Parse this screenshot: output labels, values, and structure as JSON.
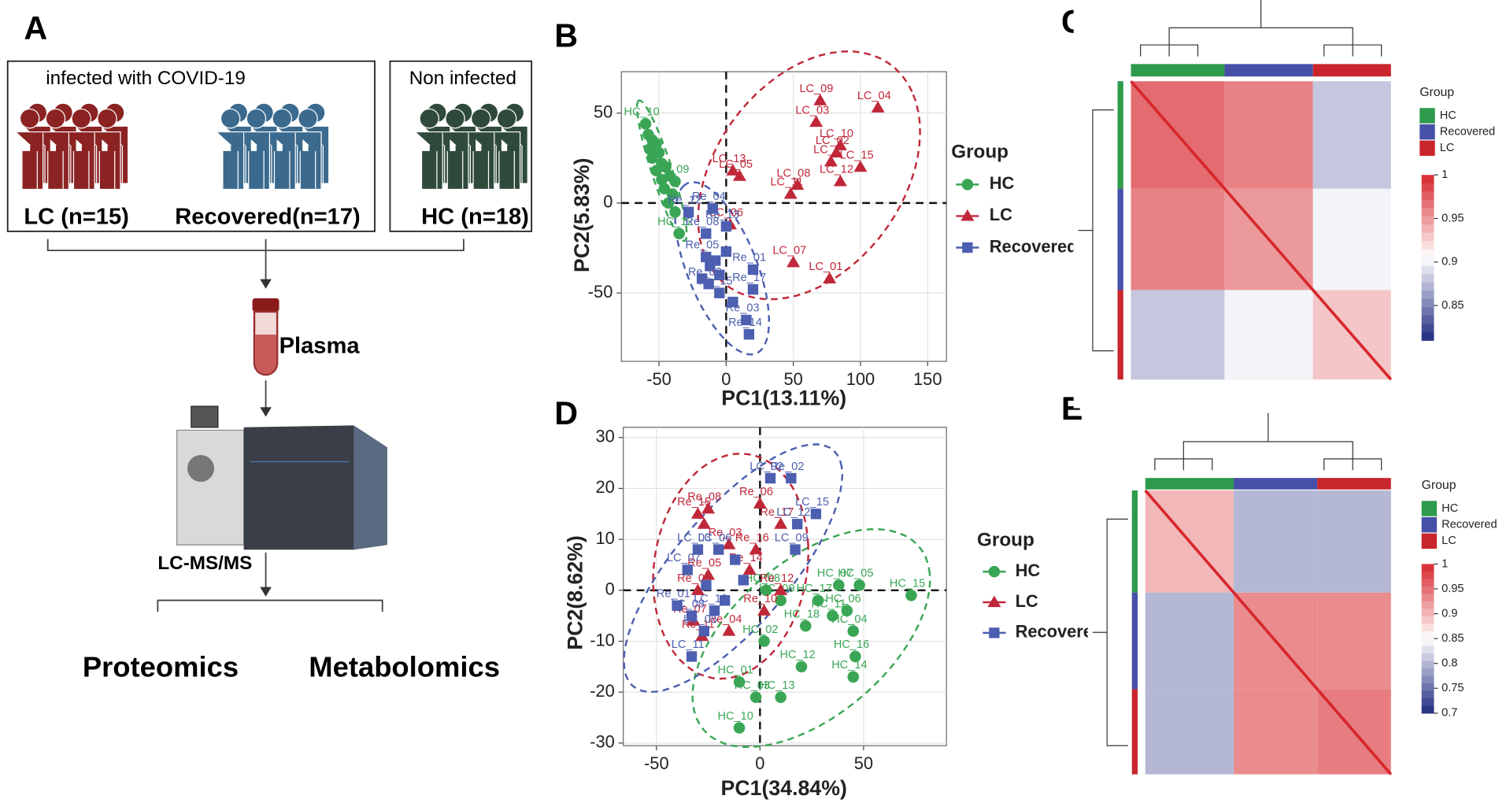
{
  "panel_letters": [
    "A",
    "B",
    "C",
    "D",
    "E"
  ],
  "panel_a": {
    "infected": "infected with COVID-19",
    "non_infected": "Non infected",
    "groups": [
      "LC (n=15)",
      "Recovered(n=17)",
      "HC (n=18)"
    ],
    "sample": "Plasma",
    "instrument": "LC-MS/MS",
    "outputs": [
      "Proteomics",
      "Metabolomics"
    ]
  },
  "chart_data": [
    {
      "type": "scatter",
      "xlabel": "PC1(13.11%)",
      "ylabel": "PC2(5.83%)",
      "xlim": [
        -78,
        164
      ],
      "ylim": [
        -88,
        73
      ],
      "xticks": [
        -50,
        0,
        50,
        100,
        150
      ],
      "yticks": [
        -50,
        0,
        50
      ],
      "grid": true,
      "hlines": [
        0
      ],
      "vlines": [
        0
      ],
      "legend_title": "Group",
      "ellipses": true,
      "series": [
        {
          "name": "HC",
          "color": "#3aa655",
          "marker": "circle",
          "x": [
            -60,
            -58,
            -55,
            -52,
            -57,
            -50,
            -55,
            -48,
            -45,
            -52,
            -42,
            -48,
            -38,
            -40,
            -43,
            -38,
            -35,
            -46
          ],
          "y": [
            44,
            38,
            35,
            33,
            30,
            28,
            25,
            22,
            20,
            18,
            15,
            13,
            12,
            5,
            0,
            -5,
            -17,
            8
          ],
          "labels": [
            "HC_10",
            null,
            null,
            null,
            null,
            null,
            null,
            null,
            null,
            null,
            null,
            null,
            "HC_09",
            null,
            null,
            null,
            "HC_12",
            null
          ]
        },
        {
          "name": "LC",
          "color": "#c0283a",
          "marker": "triangle",
          "x": [
            70,
            67,
            113,
            82,
            85,
            78,
            100,
            53,
            85,
            48,
            5,
            10,
            3,
            50,
            77
          ],
          "y": [
            57,
            45,
            53,
            28,
            32,
            23,
            20,
            10,
            12,
            5,
            18,
            15,
            -12,
            -33,
            -42
          ],
          "labels": [
            "LC_09",
            "LC_03",
            "LC_04",
            "LC_02",
            "LC_10",
            "LC_1",
            "LC_15",
            "LC_08",
            "LC_12",
            "LC_11",
            "LC_13",
            "LC_05",
            "LC_06",
            "LC_07",
            "LC_01"
          ]
        },
        {
          "name": "Recovered",
          "color": "#4d5fb0",
          "marker": "square",
          "x": [
            -28,
            -10,
            0,
            -15,
            20,
            -15,
            -13,
            -5,
            20,
            15,
            17,
            -12,
            -5,
            -8,
            0,
            -18,
            5
          ],
          "y": [
            -5,
            -3,
            -13,
            -17,
            -37,
            -30,
            -45,
            -50,
            -48,
            -65,
            -73,
            -35,
            -40,
            -32,
            -27,
            -42,
            -55
          ],
          "labels": [
            "Re_12",
            "Re_04",
            "Re_13",
            "Re_08",
            "Re_01",
            "Re_05",
            "Re_02",
            "Re_15",
            "Re_17",
            "Re_03",
            "Re_14",
            null,
            null,
            null,
            null,
            null,
            null
          ]
        }
      ]
    },
    {
      "type": "heatmap",
      "clim": [
        0.81,
        1
      ],
      "cbar_ticks": [
        0.85,
        0.9,
        0.95,
        1
      ],
      "colors": [
        "#1f2a80",
        "#ffffff",
        "#d7272c"
      ],
      "legend_title": "Group",
      "diagonal": 1,
      "groups": [
        {
          "name": "HC",
          "color": "#2e9a4b",
          "size": 18
        },
        {
          "name": "Recovered",
          "color": "#4650a8",
          "size": 17
        },
        {
          "name": "LC",
          "color": "#c9252c",
          "size": 15
        }
      ],
      "matrix": [
        [
          0.97,
          0.96,
          0.88
        ],
        [
          0.96,
          0.95,
          0.9
        ],
        [
          0.88,
          0.9,
          0.93
        ]
      ]
    },
    {
      "type": "scatter",
      "xlabel": "PC1(34.84%)",
      "ylabel": "PC2(8.62%)",
      "xlim": [
        -66,
        90
      ],
      "ylim": [
        -30.5,
        32
      ],
      "xticks": [
        -50,
        0,
        50
      ],
      "yticks": [
        -30,
        -20,
        -10,
        0,
        10,
        20,
        30
      ],
      "grid": true,
      "hlines": [
        0
      ],
      "vlines": [
        0
      ],
      "legend_title": "Group",
      "ellipses": true,
      "series": [
        {
          "name": "HC",
          "color": "#3aa655",
          "marker": "circle",
          "x": [
            38,
            48,
            73,
            28,
            42,
            35,
            45,
            22,
            46,
            2,
            20,
            45,
            -10,
            10,
            -2,
            -10,
            3,
            10
          ],
          "y": [
            1,
            1,
            -1,
            -2,
            -4,
            -5,
            -8,
            -7,
            -13,
            -10,
            -15,
            -17,
            -18,
            -21,
            -21,
            -27,
            0,
            -2
          ],
          "labels": [
            "HC_07",
            "HC_05",
            "HC_15",
            "HC_17",
            "HC_06",
            "HC_11",
            "HC_04",
            "HC_18",
            "HC_16",
            "HC_02",
            "HC_12",
            "HC_14",
            "HC_01",
            "HC_13",
            "HC_03",
            "HC_10",
            "HC_08",
            "HC_09"
          ]
        },
        {
          "name": "LC",
          "color": "#c0283a",
          "marker": "triangle",
          "x": [
            -30,
            -25,
            0,
            10,
            -15,
            -2,
            -5,
            -30,
            -25,
            10,
            -32,
            -28,
            -15,
            2,
            -27
          ],
          "y": [
            15,
            16,
            17,
            13,
            9,
            8,
            4,
            0,
            3,
            0,
            -6,
            -9,
            -8,
            -4,
            13
          ],
          "labels": [
            "Re_15",
            "Re_08",
            "Re_06",
            "Re_17",
            "Re_03",
            "Re_16",
            "Re_14",
            "Re_09",
            "Re_05",
            "Re_12",
            "Re_07",
            "Re_11",
            "Re_04",
            "Re_10",
            null
          ]
        },
        {
          "name": "Recovered",
          "color": "#4d5fb0",
          "marker": "square",
          "x": [
            5,
            15,
            27,
            -20,
            -30,
            -35,
            18,
            17,
            -40,
            -33,
            -22,
            -27,
            -33,
            -12,
            -26,
            -8,
            -17
          ],
          "y": [
            22,
            22,
            15,
            8,
            8,
            4,
            13,
            8,
            -3,
            -5,
            -4,
            -8,
            -13,
            6,
            1,
            2,
            -2
          ],
          "labels": [
            "LC_02",
            "Re_02",
            "LC_15",
            "LC_06",
            "LC_03",
            "LC_07",
            "LC_12",
            "LC_09",
            "Re_01",
            "LC_08",
            "LC_13",
            "LC_05",
            "LC_11",
            null,
            null,
            null,
            null
          ]
        }
      ]
    },
    {
      "type": "heatmap",
      "clim": [
        0.7,
        1
      ],
      "cbar_ticks": [
        0.7,
        0.75,
        0.8,
        0.85,
        0.9,
        0.95,
        1
      ],
      "colors": [
        "#1f2a80",
        "#ffffff",
        "#d7272c"
      ],
      "legend_title": "Group",
      "diagonal": 1,
      "groups": [
        {
          "name": "HC",
          "color": "#2e9a4b",
          "size": 18
        },
        {
          "name": "Recovered",
          "color": "#4650a8",
          "size": 17
        },
        {
          "name": "LC",
          "color": "#c9252c",
          "size": 15
        }
      ],
      "matrix": [
        [
          0.9,
          0.8,
          0.8
        ],
        [
          0.8,
          0.93,
          0.93
        ],
        [
          0.8,
          0.93,
          0.94
        ]
      ]
    }
  ]
}
